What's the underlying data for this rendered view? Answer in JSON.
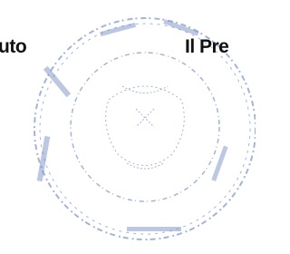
{
  "signature_block": {
    "left_label": "uto",
    "right_label": "Il Pre"
  }
}
